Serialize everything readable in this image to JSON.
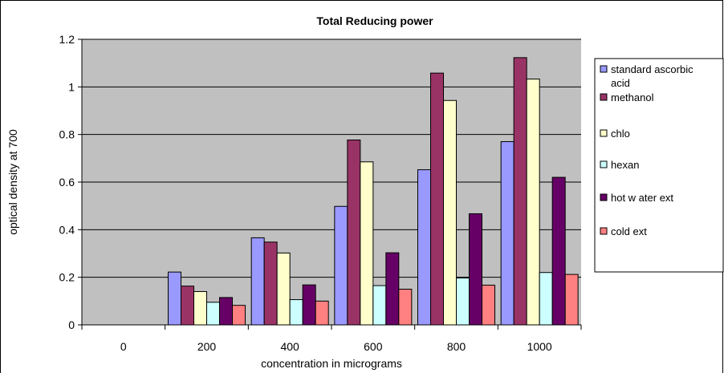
{
  "chart_data": {
    "type": "bar",
    "title": "Total Reducing power",
    "xlabel": "concentration in micrograms",
    "ylabel": "optical density at 700",
    "categories": [
      "0",
      "200",
      "400",
      "600",
      "800",
      "1000"
    ],
    "ylim": [
      0,
      1.2
    ],
    "yticks": [
      "0",
      "0.2",
      "0.4",
      "0.6",
      "0.8",
      "1",
      "1.2"
    ],
    "grid": true,
    "legend_position": "right",
    "series": [
      {
        "name": "standard ascorbic acid",
        "legend_lines": [
          "standard ascorbic",
          "acid"
        ],
        "color": "#9999ff",
        "values": [
          0,
          0.222,
          0.366,
          0.498,
          0.652,
          0.77
        ]
      },
      {
        "name": "methanol",
        "legend_lines": [
          "methanol"
        ],
        "color": "#993366",
        "values": [
          0,
          0.163,
          0.348,
          0.777,
          1.058,
          1.123
        ]
      },
      {
        "name": "chlo",
        "legend_lines": [
          "chlo"
        ],
        "color": "#ffffcc",
        "values": [
          0,
          0.14,
          0.302,
          0.685,
          0.943,
          1.033
        ]
      },
      {
        "name": "hexan",
        "legend_lines": [
          "hexan"
        ],
        "color": "#ccffff",
        "values": [
          0,
          0.095,
          0.106,
          0.165,
          0.197,
          0.22
        ]
      },
      {
        "name": "hot water ext",
        "legend_lines": [
          "hot w ater ext"
        ],
        "color": "#660066",
        "values": [
          0,
          0.115,
          0.168,
          0.303,
          0.467,
          0.62
        ]
      },
      {
        "name": "cold ext",
        "legend_lines": [
          "cold ext"
        ],
        "color": "#ff8080",
        "values": [
          0,
          0.082,
          0.1,
          0.15,
          0.167,
          0.212
        ]
      }
    ]
  }
}
